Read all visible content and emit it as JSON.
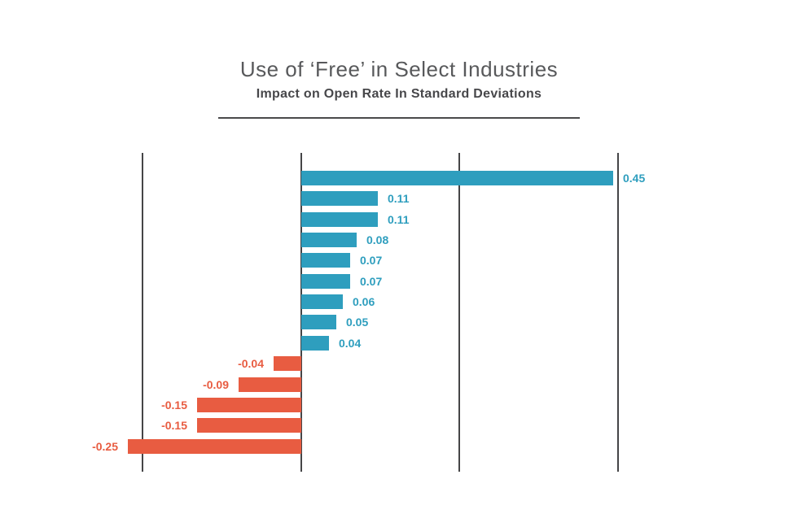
{
  "header": {
    "title": "Use of ‘Free’ in Select Industries",
    "subtitle": "Impact on Open Rate In Standard Deviations"
  },
  "colors": {
    "positive_bar": "#2E9EBE",
    "negative_bar": "#E85C41",
    "gridline": "#454547",
    "title_text": "#58595B",
    "subtitle_text": "#47474A",
    "background": "#FFFFFF"
  },
  "chart_data": {
    "type": "bar",
    "orientation": "horizontal",
    "title": "Use of ‘Free’ in Select Industries",
    "subtitle": "Impact on Open Rate In Standard Deviations",
    "xlabel": "",
    "ylabel": "",
    "categories": [],
    "values": [
      0.45,
      0.11,
      0.11,
      0.08,
      0.07,
      0.07,
      0.06,
      0.05,
      0.04,
      -0.04,
      -0.09,
      -0.15,
      -0.15,
      -0.25
    ],
    "value_labels": [
      "0.45",
      "0.11",
      "0.11",
      "0.08",
      "0.07",
      "0.07",
      "0.06",
      "0.05",
      "0.04",
      "-0.04",
      "-0.09",
      "-0.15",
      "-0.15",
      "-0.25"
    ],
    "xlim": [
      -0.23,
      0.46
    ],
    "grid": "4 vertical gridlines evenly spaced across plot, zero line on second gridline",
    "legend": "none",
    "notes": "Positive bars teal-blue with blue labels right of bar end; negative bars orange-red with orange labels left of bar start; no category labels shown"
  }
}
